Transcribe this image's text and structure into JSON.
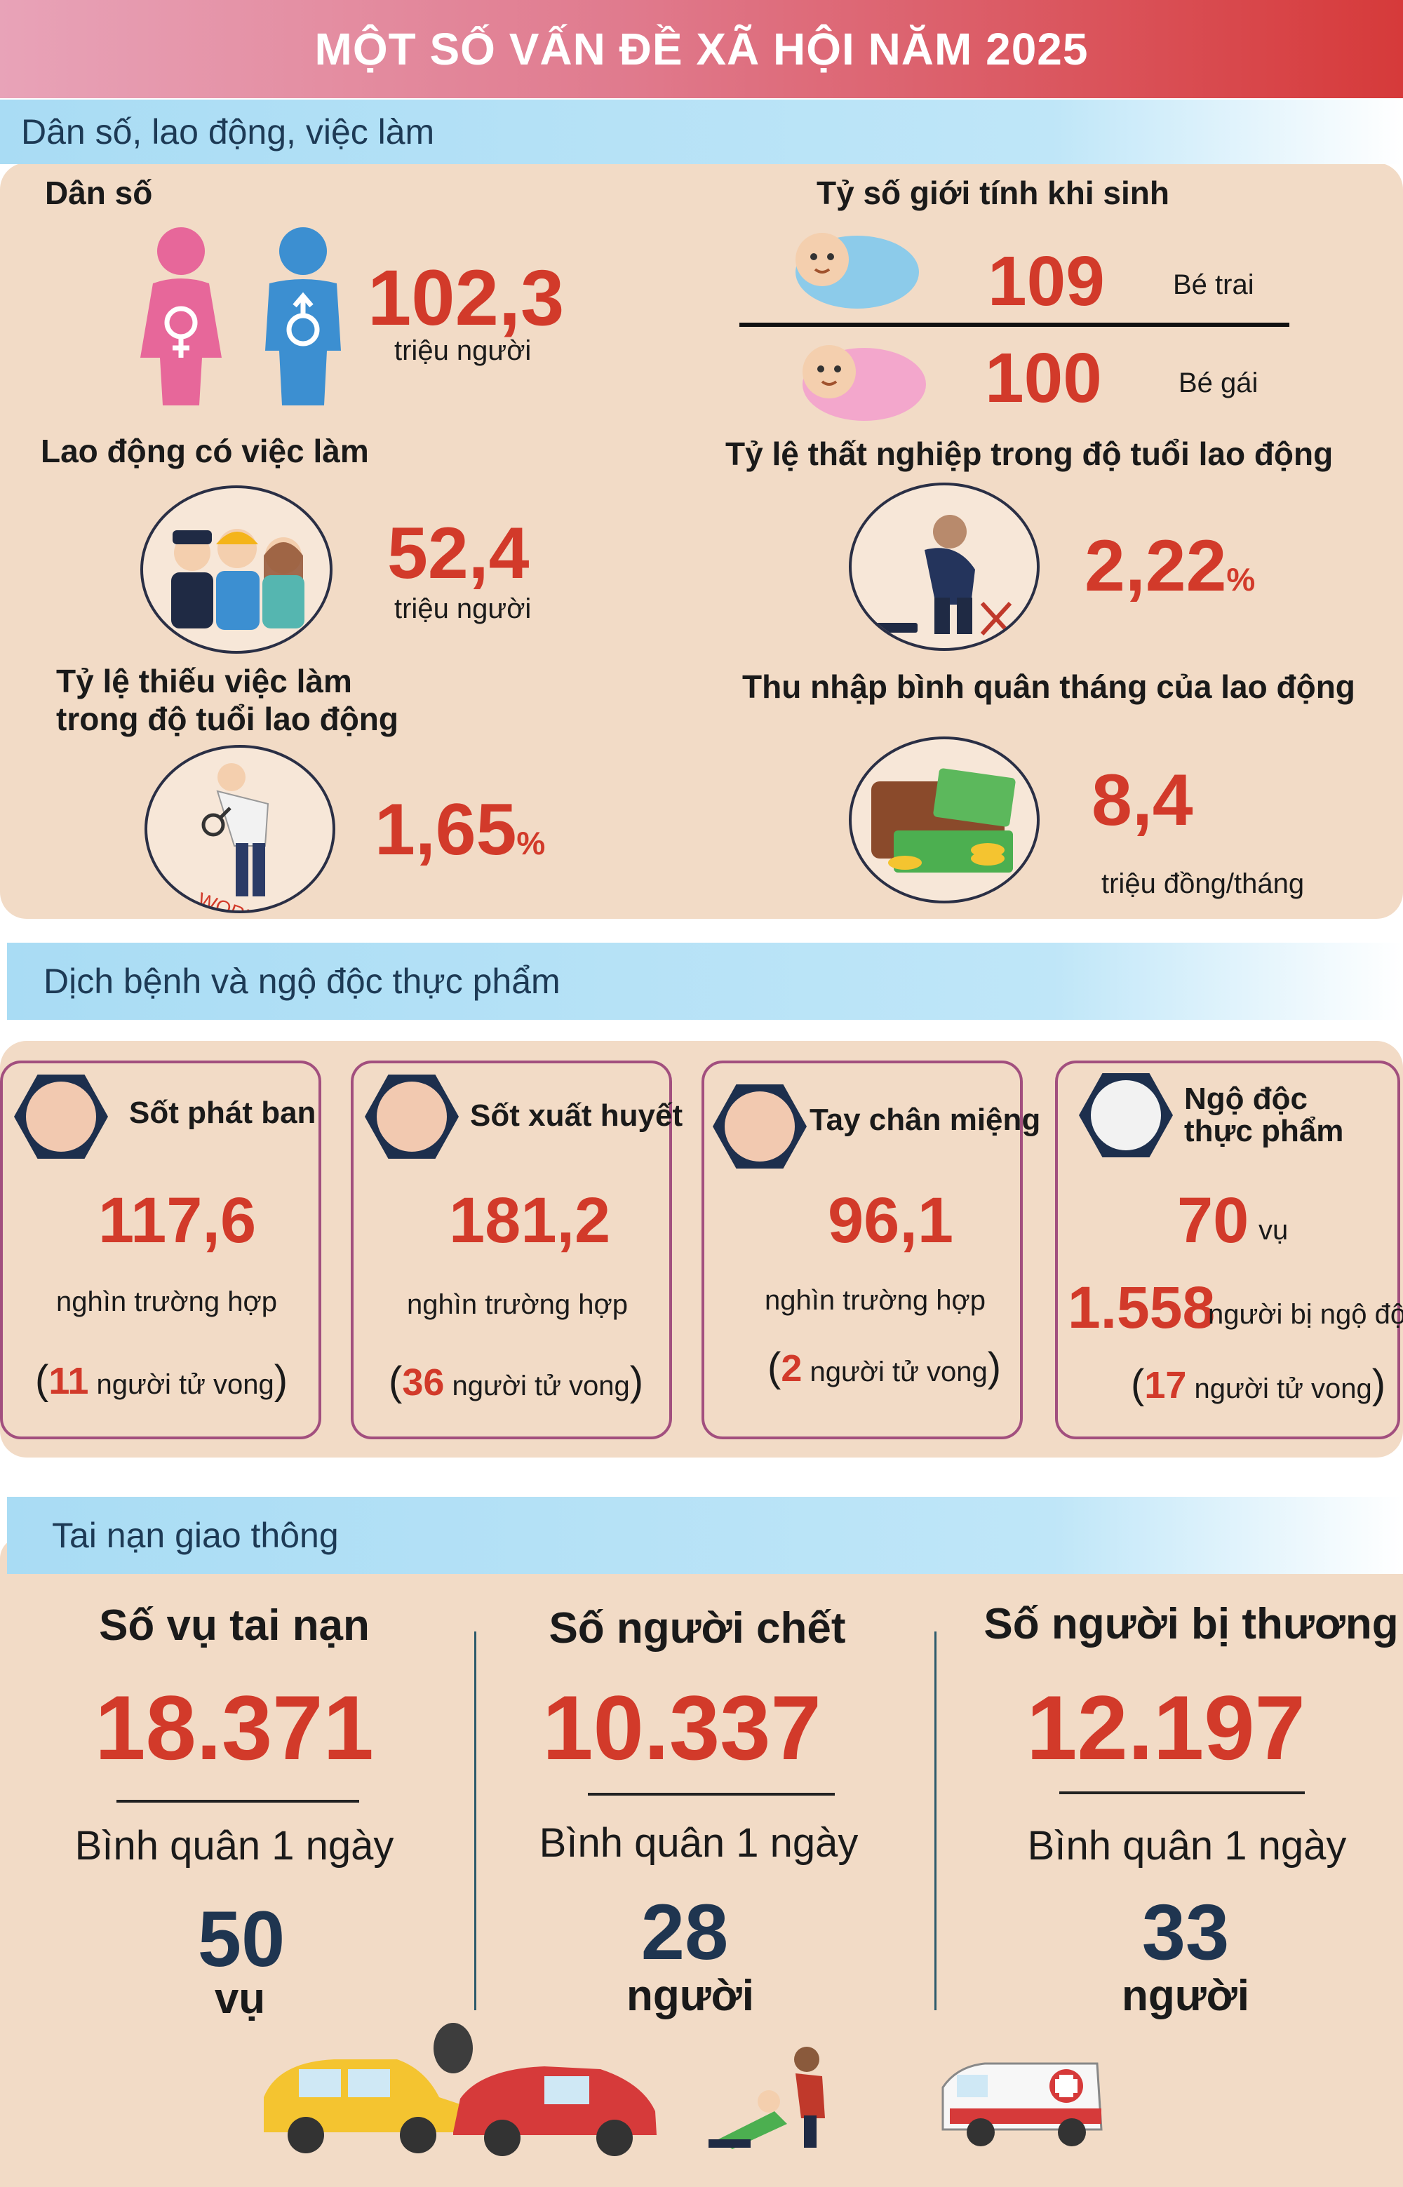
{
  "title": "MỘT SỐ VẤN ĐỀ XÃ HỘI NĂM 2025",
  "section1": {
    "heading": "Dân số, lao động, việc làm",
    "population": {
      "label": "Dân số",
      "value": "102,3",
      "unit": "triệu người"
    },
    "sex_ratio": {
      "label": "Tỷ số giới tính khi sinh",
      "boys_value": "109",
      "boys_label": "Bé trai",
      "girls_value": "100",
      "girls_label": "Bé gái"
    },
    "employed": {
      "label": "Lao động có việc làm",
      "value": "52,4",
      "unit": "triệu người"
    },
    "unemployment": {
      "label": "Tỷ lệ thất nghiệp trong độ tuổi lao động",
      "value": "2,22",
      "unit": "%"
    },
    "underemployment": {
      "label_line1": "Tỷ lệ thiếu việc làm",
      "label_line2": "trong độ tuổi lao động",
      "value": "1,65",
      "unit": "%"
    },
    "income": {
      "label": "Thu nhập bình quân tháng của lao động",
      "value": "8,4",
      "unit": "triệu đồng/tháng"
    }
  },
  "section2": {
    "heading": "Dịch bệnh và ngộ độc thực phẩm",
    "cards": [
      {
        "title": "Sốt phát ban",
        "value": "117,6",
        "unit": "nghìn trường hợp",
        "deaths": "11",
        "death_text": "người tử vong"
      },
      {
        "title": "Sốt xuất huyết",
        "value": "181,2",
        "unit": "nghìn trường hợp",
        "deaths": "36",
        "death_text": "người tử vong"
      },
      {
        "title": "Tay chân miệng",
        "value": "96,1",
        "unit": "nghìn trường hợp",
        "deaths": "2",
        "death_text": "người tử vong"
      }
    ],
    "food": {
      "title_line1": "Ngộ độc",
      "title_line2": "thực phẩm",
      "cases": "70",
      "cases_unit": "vụ",
      "victims": "1.558",
      "victims_text": "người bị ngộ độc",
      "deaths": "17",
      "death_text": "người tử vong"
    }
  },
  "section3": {
    "heading": "Tai nạn giao thông",
    "columns": [
      {
        "head": "Số vụ tai nạn",
        "value": "18.371",
        "avg_label": "Bình quân 1 ngày",
        "avg_value": "50",
        "avg_unit": "vụ"
      },
      {
        "head": "Số người chết",
        "value": "10.337",
        "avg_label": "Bình quân 1 ngày",
        "avg_value": "28",
        "avg_unit": "người"
      },
      {
        "head": "Số người bị thương",
        "value": "12.197",
        "avg_label": "Bình quân 1 ngày",
        "avg_value": "33",
        "avg_unit": "người"
      }
    ]
  },
  "colors": {
    "accent_red": "#d23a2a",
    "panel": "#f2dbc6",
    "band": "#a9dcf4",
    "navy": "#1f3550",
    "card_border": "#a24f7e"
  },
  "icons": [
    "female-icon",
    "male-icon",
    "baby-boy-icon",
    "baby-girl-icon",
    "workers-icon",
    "unemployed-man-icon",
    "job-search-icon",
    "wallet-money-icon",
    "rash-icon",
    "mosquito-icon",
    "hand-foot-mouth-icon",
    "food-poisoning-icon",
    "car-crash-icon",
    "injured-person-icon",
    "ambulance-icon"
  ]
}
